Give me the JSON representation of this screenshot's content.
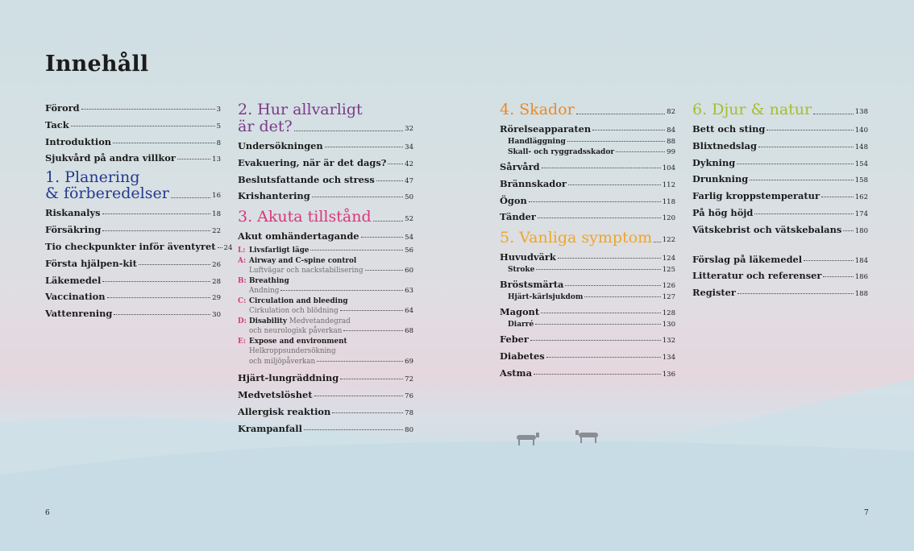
{
  "colors": {
    "blue": "#233a8e",
    "purple": "#7d3a8a",
    "pink": "#d9367d",
    "orange": "#ea8a2a",
    "yellow": "#f0a52a",
    "lime": "#a8bd2a"
  },
  "title": "Innehåll",
  "col1": {
    "front": [
      {
        "t": "Förord",
        "p": "3"
      },
      {
        "t": "Tack",
        "p": "5"
      },
      {
        "t": "Introduktion",
        "p": "8"
      },
      {
        "t": "Sjukvård på andra villkor",
        "p": "13"
      }
    ],
    "s1_line1": "1. Planering",
    "s1_line2": "& förberedelser",
    "s1_page": "16",
    "items": [
      {
        "t": "Riskanalys",
        "p": "18"
      },
      {
        "t": "Försäkring",
        "p": "22"
      },
      {
        "t": "Tio checkpunkter inför äventyret",
        "p": "24"
      },
      {
        "t": "Första hjälpen-kit",
        "p": "26"
      },
      {
        "t": "Läkemedel",
        "p": "28"
      },
      {
        "t": "Vaccination",
        "p": "29"
      },
      {
        "t": "Vattenrening",
        "p": "30"
      }
    ]
  },
  "col2": {
    "s2_line1": "2. Hur allvarligt",
    "s2_line2": "är det?",
    "s2_page": "32",
    "s2_items": [
      {
        "t": "Undersökningen",
        "p": "34"
      },
      {
        "t": "Evakuering, när är det dags?",
        "p": "42"
      },
      {
        "t": "Beslutsfattande och stress",
        "p": "47"
      },
      {
        "t": "Krishantering",
        "p": "50"
      }
    ],
    "s3": "3. Akuta tillstånd",
    "s3_page": "52",
    "akut": {
      "t": "Akut omhändertagande",
      "p": "54"
    },
    "abc": {
      "L": {
        "letter": "L:",
        "text": "Livsfarligt läge",
        "p": "56"
      },
      "A": {
        "letter": "A:",
        "text": "Airway and C-spine control",
        "sub": "Luftvägar och nackstabilisering",
        "p": "60"
      },
      "B": {
        "letter": "B:",
        "text": "Breathing",
        "sub": "Andning",
        "p": "63"
      },
      "C": {
        "letter": "C:",
        "text": "Circulation and bleeding",
        "sub": "Cirkulation och blödning",
        "p": "64"
      },
      "D": {
        "letter": "D:",
        "text": "Disability",
        "extra": "Medvetandegrad",
        "sub": "och neurologisk påverkan",
        "p": "68"
      },
      "E": {
        "letter": "E:",
        "text": "Expose and environment",
        "sub1": "Helkroppsundersökning",
        "sub2": "och miljöpåverkan",
        "p": "69"
      }
    },
    "s3_items": [
      {
        "t": "Hjärt-lungräddning",
        "p": "72"
      },
      {
        "t": "Medvetslöshet",
        "p": "76"
      },
      {
        "t": "Allergisk reaktion",
        "p": "78"
      },
      {
        "t": "Krampanfall",
        "p": "80"
      }
    ]
  },
  "col3": {
    "s4": "4. Skador",
    "s4_page": "82",
    "s4_items": [
      {
        "t": "Rörelseapparaten",
        "p": "84"
      },
      {
        "t": "Sårvård",
        "p": "104"
      },
      {
        "t": "Brännskador",
        "p": "112"
      },
      {
        "t": "Ögon",
        "p": "118"
      },
      {
        "t": "Tänder",
        "p": "120"
      }
    ],
    "s4_subs": [
      {
        "t": "Handläggning",
        "p": "88"
      },
      {
        "t": "Skall- och ryggradsskador",
        "p": "99"
      }
    ],
    "s5": "5. Vanliga symptom",
    "s5_page": "122",
    "huvud": {
      "t": "Huvudvärk",
      "p": "124"
    },
    "stroke": {
      "t": "Stroke",
      "p": "125"
    },
    "brost": {
      "t": "Bröstsmärta",
      "p": "126"
    },
    "hjart": {
      "t": "Hjärt-kärlsjukdom",
      "p": "127"
    },
    "magont": {
      "t": "Magont",
      "p": "128"
    },
    "diarre": {
      "t": "Diarré",
      "p": "130"
    },
    "s5_items": [
      {
        "t": "Feber",
        "p": "132"
      },
      {
        "t": "Diabetes",
        "p": "134"
      },
      {
        "t": "Astma",
        "p": "136"
      }
    ]
  },
  "col4": {
    "s6": "6. Djur & natur",
    "s6_page": "138",
    "s6_items": [
      {
        "t": "Bett och sting",
        "p": "140"
      },
      {
        "t": "Blixtnedslag",
        "p": "148"
      },
      {
        "t": "Dykning",
        "p": "154"
      },
      {
        "t": "Drunkning",
        "p": "158"
      },
      {
        "t": "Farlig kroppstemperatur",
        "p": "162"
      },
      {
        "t": "På hög höjd",
        "p": "174"
      },
      {
        "t": "Vätskebrist och vätskebalans",
        "p": "180"
      }
    ],
    "back": [
      {
        "t": "Förslag på läkemedel",
        "p": "184"
      },
      {
        "t": "Litteratur och referenser",
        "p": "186"
      },
      {
        "t": "Register",
        "p": "188"
      }
    ]
  },
  "page_left": "6",
  "page_right": "7"
}
